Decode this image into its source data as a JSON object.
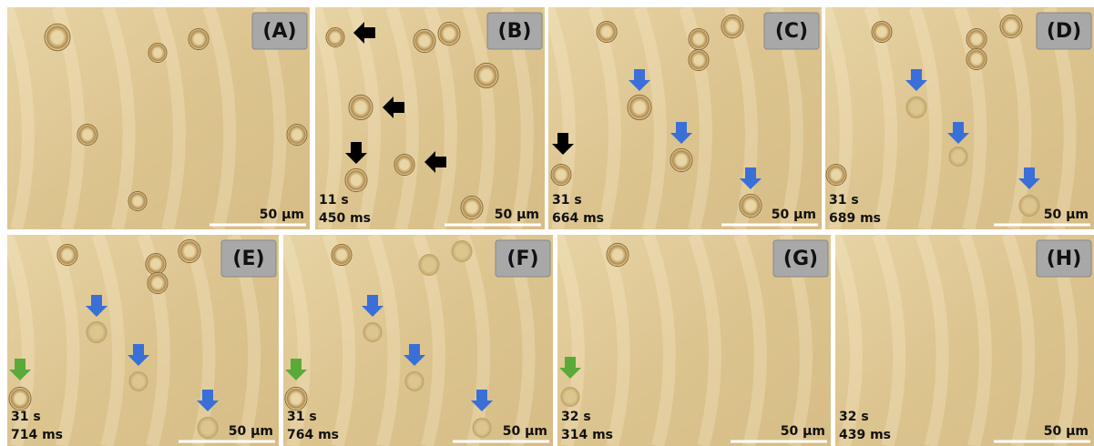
{
  "panels": [
    {
      "label": "(A)",
      "scale": "50 µm"
    },
    {
      "label": "(B)",
      "time": [
        "11 s",
        "450 ms"
      ],
      "scale": "50 µm"
    },
    {
      "label": "(C)",
      "time": [
        "31 s",
        "664 ms"
      ],
      "scale": "50 µm"
    },
    {
      "label": "(D)",
      "time": [
        "31 s",
        "689 ms"
      ],
      "scale": "50 µm"
    },
    {
      "label": "(E)",
      "time": [
        "31 s",
        "714 ms"
      ],
      "scale": "50 µm"
    },
    {
      "label": "(F)",
      "time": [
        "31 s",
        "764 ms"
      ],
      "scale": "50 µm"
    },
    {
      "label": "(G)",
      "time": [
        "32 s",
        "314 ms"
      ],
      "scale": "50 µm"
    },
    {
      "label": "(H)",
      "time": [
        "32 s",
        "439 ms"
      ],
      "scale": "50 µm"
    }
  ]
}
